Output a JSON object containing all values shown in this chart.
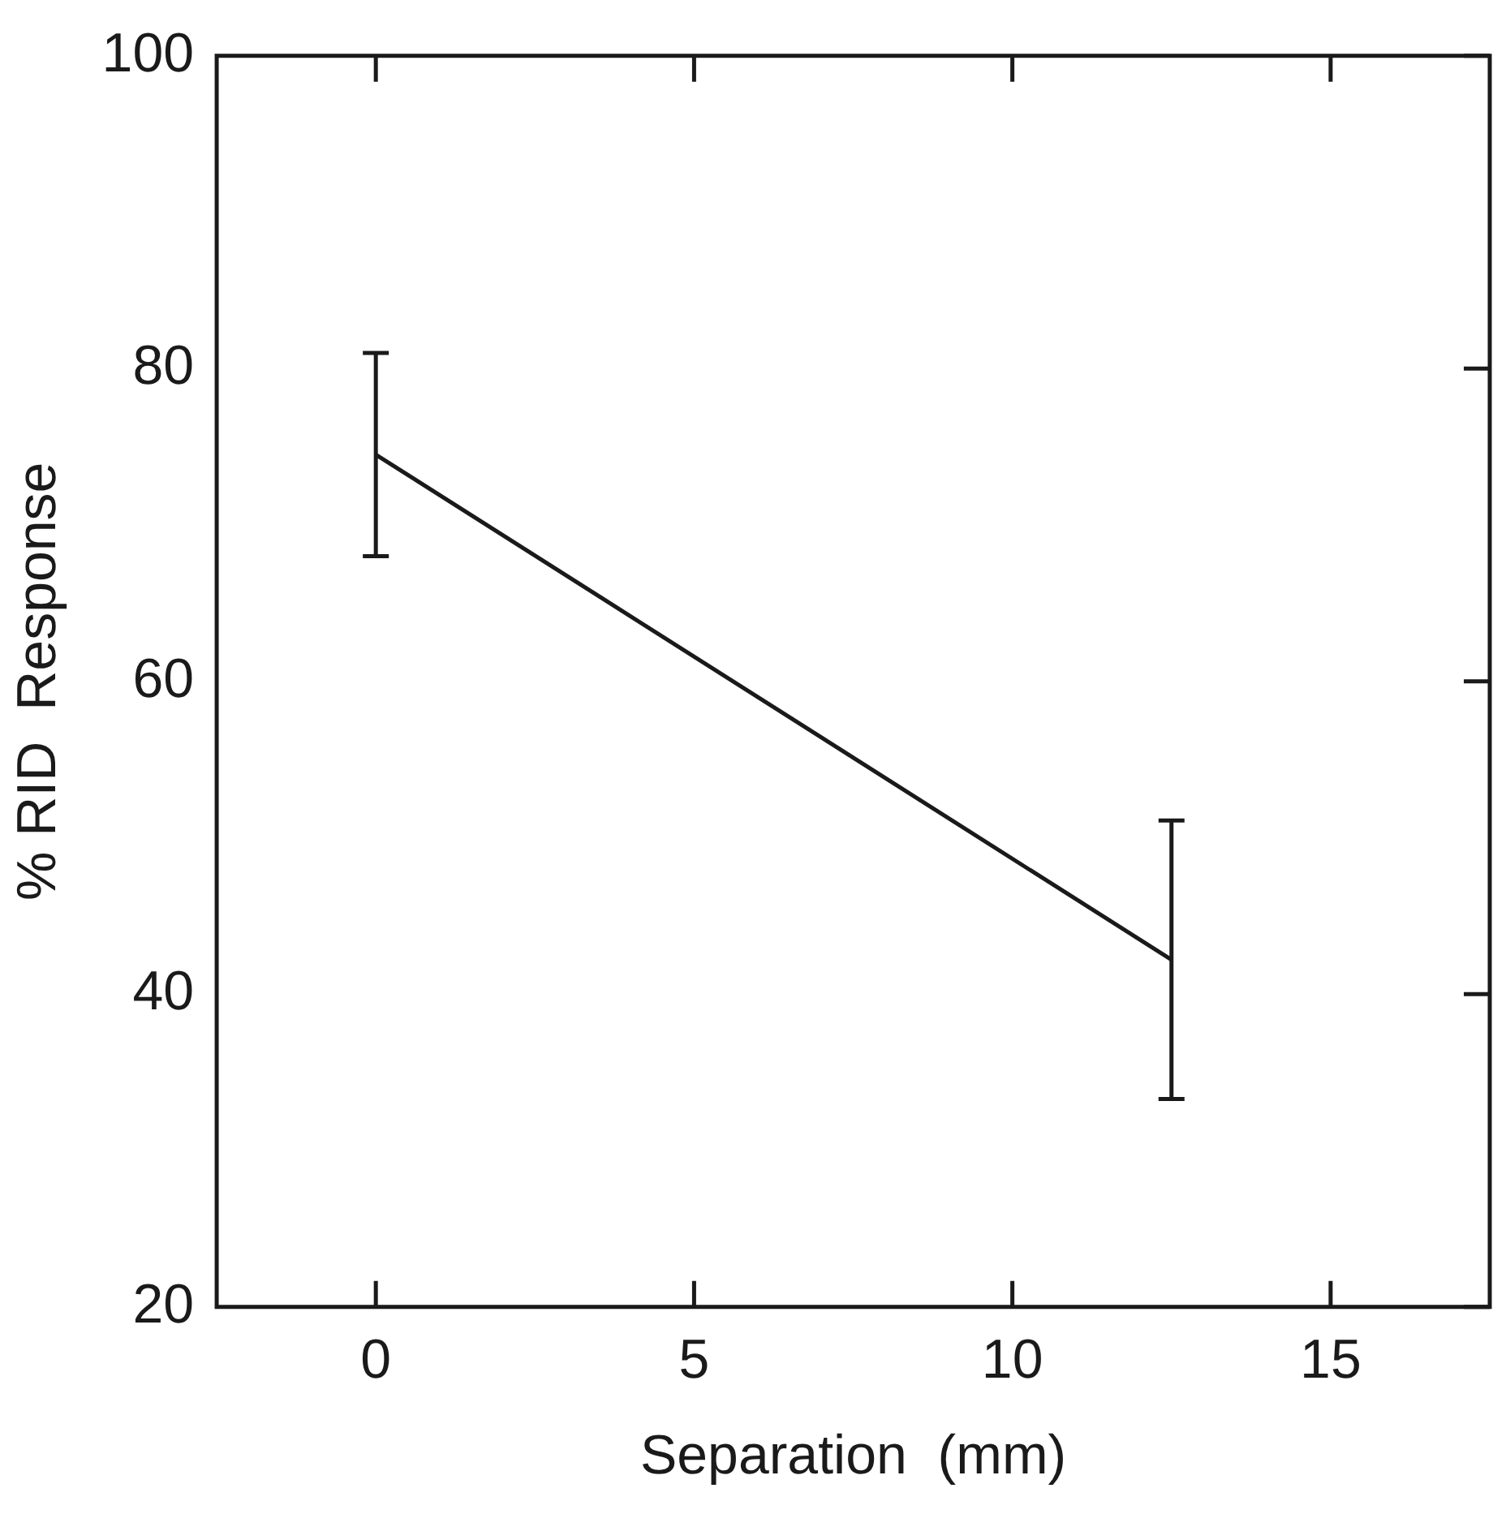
{
  "chart_data": {
    "type": "line",
    "xlabel": "Separation  (mm)",
    "ylabel": "% RID  Response",
    "x": [
      0,
      12.5
    ],
    "series": [
      {
        "color": "#1a1a1a",
        "values": [
          74.5,
          42.2
        ],
        "errors": [
          6.5,
          8.9
        ]
      }
    ],
    "xlim": [
      -2.5,
      17.5
    ],
    "ylim": [
      20,
      100
    ],
    "xticks": [
      0,
      5,
      10,
      15
    ],
    "yticks": [
      20,
      40,
      60,
      80,
      100
    ],
    "grid": false,
    "legend": false,
    "marker": "none",
    "line_style": "solid"
  }
}
